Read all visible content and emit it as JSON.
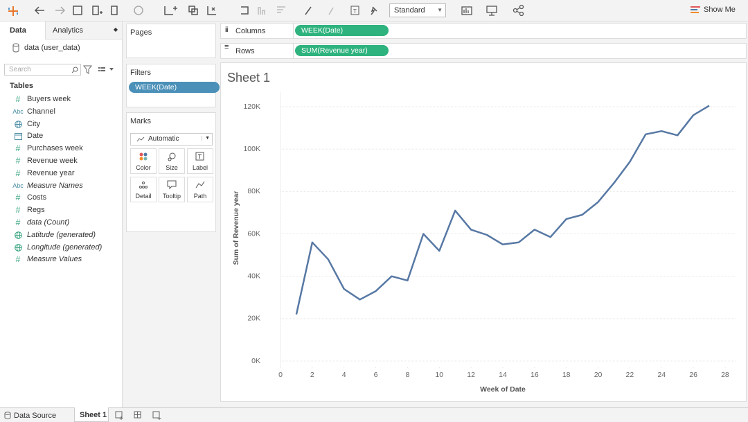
{
  "toolbar": {
    "fit_dropdown": "Standard",
    "show_me": "Show Me"
  },
  "data_pane": {
    "tabs": [
      "Data",
      "Analytics"
    ],
    "source": "data (user_data)",
    "search_placeholder": "Search",
    "tables_heading": "Tables",
    "fields": [
      {
        "icon": "#",
        "name": "Buyers week"
      },
      {
        "icon": "Abc",
        "name": "Channel"
      },
      {
        "name": "City"
      },
      {
        "name": "Date"
      },
      {
        "icon": "#",
        "name": "Purchases week"
      },
      {
        "icon": "#",
        "name": "Revenue week"
      },
      {
        "icon": "#",
        "name": "Revenue year"
      },
      {
        "icon": "Abc",
        "name": "Measure Names"
      },
      {
        "icon": "#",
        "name": "Costs"
      },
      {
        "icon": "#",
        "name": "Regs"
      },
      {
        "icon": "#",
        "name": "data (Count)"
      },
      {
        "name": "Latitude (generated)"
      },
      {
        "name": "Longitude (generated)"
      },
      {
        "icon": "#",
        "name": "Measure Values"
      }
    ]
  },
  "cards": {
    "pages": "Pages",
    "filters": {
      "title": "Filters",
      "pill": "WEEK(Date)"
    },
    "marks": {
      "title": "Marks",
      "mark_type": "Automatic",
      "buttons": [
        "Color",
        "Size",
        "Label",
        "Detail",
        "Tooltip",
        "Path"
      ]
    }
  },
  "shelves": {
    "columns": {
      "label": "Columns",
      "pill": "WEEK(Date)"
    },
    "rows": {
      "label": "Rows",
      "pill": "SUM(Revenue year)"
    }
  },
  "chart_data": {
    "type": "line",
    "title": "Sheet 1",
    "x_label": "Week of Date",
    "y_label": "Sum of Revenue year",
    "x": [
      1,
      2,
      3,
      4,
      5,
      6,
      7,
      8,
      9,
      10,
      11,
      12,
      13,
      14,
      15,
      16,
      17,
      18,
      19,
      20,
      21,
      22,
      23,
      24,
      25,
      26,
      27
    ],
    "series": [
      {
        "name": "Revenue year",
        "color": "#5778a4",
        "values": [
          22000,
          56000,
          48000,
          34000,
          29000,
          33000,
          40000,
          38000,
          60000,
          52000,
          71000,
          62000,
          59500,
          55000,
          56000,
          62000,
          58500,
          67000,
          69000,
          75000,
          84000,
          94000,
          107000,
          108500,
          106500,
          116000,
          120500
        ]
      }
    ],
    "xlim": [
      0,
      28.7
    ],
    "xticks": [
      0,
      2,
      4,
      6,
      8,
      10,
      12,
      14,
      16,
      18,
      20,
      22,
      24,
      26,
      28
    ],
    "ylim": [
      -3000,
      127000
    ],
    "yticks": [
      {
        "value": 0,
        "label": "0K"
      },
      {
        "value": 20000,
        "label": "20K"
      },
      {
        "value": 40000,
        "label": "40K"
      },
      {
        "value": 60000,
        "label": "60K"
      },
      {
        "value": 80000,
        "label": "80K"
      },
      {
        "value": 100000,
        "label": "100K"
      },
      {
        "value": 120000,
        "label": "120K"
      }
    ],
    "grid": true
  },
  "sheet_tabs": {
    "data_source": "Data Source",
    "sheets": [
      "Sheet 1"
    ]
  }
}
